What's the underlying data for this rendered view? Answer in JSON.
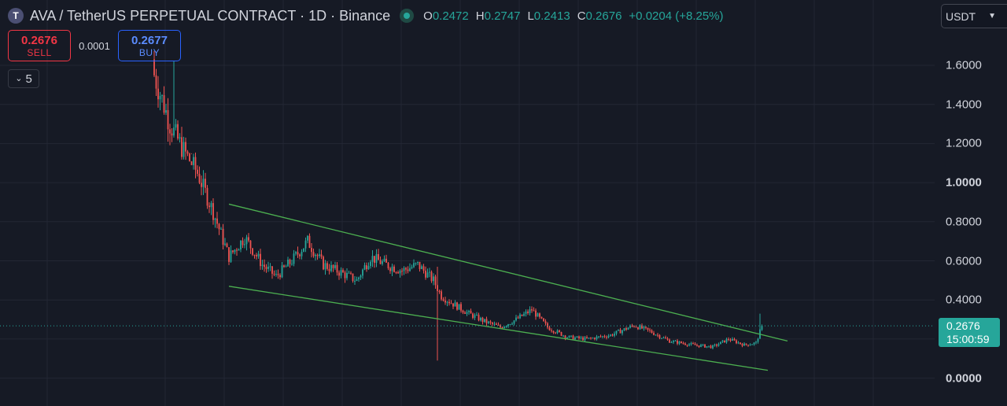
{
  "header": {
    "symbol_icon": "T",
    "title": "AVA / TetherUS PERPETUAL CONTRACT · 1D · Binance",
    "ohlc": {
      "o_label": "O",
      "o": "0.2472",
      "h_label": "H",
      "h": "0.2747",
      "l_label": "L",
      "l": "0.2413",
      "c_label": "C",
      "c": "0.2676",
      "change": "+0.0204 (+8.25%)"
    },
    "status_icon": "market-open-dot-icon"
  },
  "trade": {
    "sell_price": "0.2676",
    "sell_label": "SELL",
    "spread": "0.0001",
    "buy_price": "0.2677",
    "buy_label": "BUY"
  },
  "indicators_toggle": {
    "icon": "chevron-down-icon",
    "count": "5"
  },
  "currency_select": {
    "value": "USDT",
    "icon": "chevron-down-icon"
  },
  "price_tag": {
    "price": "0.2676",
    "countdown": "15:00:59"
  },
  "colors": {
    "background": "#161a25",
    "up": "#26a69a",
    "down": "#ef5350",
    "trendline": "#4caf50",
    "grid": "#232734"
  },
  "chart_data": {
    "type": "candlestick",
    "title": "AVA / TetherUS PERPETUAL CONTRACT · 1D · Binance",
    "ylim": [
      -0.12,
      1.85
    ],
    "y_ticks": [
      "1.6000",
      "1.4000",
      "1.2000",
      "1.0000",
      "0.8000",
      "0.6000",
      "0.4000",
      "0.0000"
    ],
    "major_ticks": [
      "1.0000",
      "0.0000"
    ],
    "last_price": 0.2676,
    "grid": true,
    "series_approx_close": [
      {
        "i": 0,
        "v": 1.55
      },
      {
        "i": 8,
        "v": 1.3
      },
      {
        "i": 14,
        "v": 1.18
      },
      {
        "i": 22,
        "v": 1.05
      },
      {
        "i": 30,
        "v": 0.85
      },
      {
        "i": 38,
        "v": 0.62
      },
      {
        "i": 46,
        "v": 0.72
      },
      {
        "i": 55,
        "v": 0.58
      },
      {
        "i": 62,
        "v": 0.52
      },
      {
        "i": 70,
        "v": 0.6
      },
      {
        "i": 78,
        "v": 0.7
      },
      {
        "i": 86,
        "v": 0.58
      },
      {
        "i": 95,
        "v": 0.54
      },
      {
        "i": 103,
        "v": 0.5
      },
      {
        "i": 110,
        "v": 0.62
      },
      {
        "i": 118,
        "v": 0.58
      },
      {
        "i": 126,
        "v": 0.55
      },
      {
        "i": 134,
        "v": 0.58
      },
      {
        "i": 142,
        "v": 0.5
      },
      {
        "i": 146,
        "v": 0.42
      },
      {
        "i": 152,
        "v": 0.38
      },
      {
        "i": 160,
        "v": 0.33
      },
      {
        "i": 168,
        "v": 0.29
      },
      {
        "i": 176,
        "v": 0.26
      },
      {
        "i": 184,
        "v": 0.3
      },
      {
        "i": 192,
        "v": 0.35
      },
      {
        "i": 200,
        "v": 0.26
      },
      {
        "i": 210,
        "v": 0.21
      },
      {
        "i": 220,
        "v": 0.2
      },
      {
        "i": 232,
        "v": 0.22
      },
      {
        "i": 244,
        "v": 0.27
      },
      {
        "i": 252,
        "v": 0.24
      },
      {
        "i": 262,
        "v": 0.19
      },
      {
        "i": 274,
        "v": 0.17
      },
      {
        "i": 284,
        "v": 0.16
      },
      {
        "i": 292,
        "v": 0.2
      },
      {
        "i": 300,
        "v": 0.17
      },
      {
        "i": 306,
        "v": 0.18
      },
      {
        "i": 309,
        "v": 0.2676
      }
    ],
    "trendlines": [
      {
        "name": "upper",
        "from": {
          "i": 38,
          "v": 0.89
        },
        "to": {
          "i": 322,
          "v": 0.19
        }
      },
      {
        "name": "lower",
        "from": {
          "i": 38,
          "v": 0.47
        },
        "to": {
          "i": 312,
          "v": 0.04
        }
      }
    ]
  }
}
